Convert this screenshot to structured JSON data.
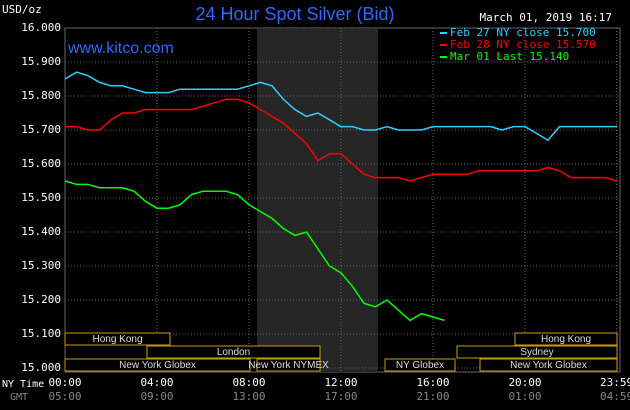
{
  "chart_data": {
    "type": "line",
    "title": "24 Hour Spot Silver (Bid)",
    "subtitle": "March 01, 2019 16:17",
    "watermark": "www.kitco.com",
    "y_label": "USD/oz",
    "x_label": "NY Time",
    "x2_label": "GMT",
    "x": [
      0,
      0.5,
      1,
      1.5,
      2,
      2.5,
      3,
      3.5,
      4,
      4.5,
      5,
      5.5,
      6,
      6.5,
      7,
      7.5,
      8,
      8.5,
      9,
      9.5,
      10,
      10.5,
      11,
      11.5,
      12,
      12.5,
      13,
      13.5,
      14,
      14.5,
      15,
      15.5,
      16,
      16.5,
      17,
      17.5,
      18,
      18.5,
      19,
      19.5,
      20,
      20.5,
      21,
      21.5,
      22,
      22.5,
      23,
      23.5,
      24
    ],
    "series": [
      {
        "name": "Feb 27 NY close 15.700",
        "color": "#33ccff",
        "values": [
          15.85,
          15.87,
          15.86,
          15.84,
          15.83,
          15.83,
          15.82,
          15.81,
          15.81,
          15.81,
          15.82,
          15.82,
          15.82,
          15.82,
          15.82,
          15.82,
          15.83,
          15.84,
          15.83,
          15.79,
          15.76,
          15.74,
          15.75,
          15.73,
          15.71,
          15.71,
          15.7,
          15.7,
          15.71,
          15.7,
          15.7,
          15.7,
          15.71,
          15.71,
          15.71,
          15.71,
          15.71,
          15.71,
          15.7,
          15.71,
          15.71,
          15.69,
          15.67,
          15.71,
          15.71,
          15.71,
          15.71,
          15.71,
          15.71
        ]
      },
      {
        "name": "Feb 28 NY close 15.570",
        "color": "#ff0000",
        "values": [
          15.71,
          15.71,
          15.7,
          15.7,
          15.73,
          15.75,
          15.75,
          15.76,
          15.76,
          15.76,
          15.76,
          15.76,
          15.77,
          15.78,
          15.79,
          15.79,
          15.78,
          15.76,
          15.74,
          15.72,
          15.69,
          15.66,
          15.61,
          15.63,
          15.63,
          15.6,
          15.57,
          15.56,
          15.56,
          15.56,
          15.55,
          15.56,
          15.57,
          15.57,
          15.57,
          15.57,
          15.58,
          15.58,
          15.58,
          15.58,
          15.58,
          15.58,
          15.59,
          15.58,
          15.56,
          15.56,
          15.56,
          15.56,
          15.55
        ]
      },
      {
        "name": "Mar 01 Last 15.140",
        "color": "#00ff00",
        "values": [
          15.55,
          15.54,
          15.54,
          15.53,
          15.53,
          15.53,
          15.52,
          15.49,
          15.47,
          15.47,
          15.48,
          15.51,
          15.52,
          15.52,
          15.52,
          15.51,
          15.48,
          15.46,
          15.44,
          15.41,
          15.39,
          15.4,
          15.35,
          15.3,
          15.28,
          15.24,
          15.19,
          15.18,
          15.2,
          15.17,
          15.14,
          15.16,
          15.15,
          15.14,
          null,
          null,
          null,
          null,
          null,
          null,
          null,
          null,
          null,
          null,
          null,
          null,
          null,
          null,
          null
        ]
      }
    ],
    "xlim": [
      0,
      24
    ],
    "xticks": [
      {
        "value": 0,
        "label": "00:00"
      },
      {
        "value": 4,
        "label": "04:00"
      },
      {
        "value": 8,
        "label": "08:00"
      },
      {
        "value": 12,
        "label": "12:00"
      },
      {
        "value": 16,
        "label": "16:00"
      },
      {
        "value": 20,
        "label": "20:00"
      },
      {
        "value": 23.983,
        "label": "23:59"
      }
    ],
    "x2ticks": [
      {
        "value": 0,
        "label": "05:00"
      },
      {
        "value": 4,
        "label": "09:00"
      },
      {
        "value": 8,
        "label": "13:00"
      },
      {
        "value": 12,
        "label": "17:00"
      },
      {
        "value": 16,
        "label": "21:00"
      },
      {
        "value": 20,
        "label": "01:00"
      },
      {
        "value": 23.983,
        "label": "04:59"
      }
    ],
    "ylim": [
      15,
      16
    ],
    "yticks": [
      {
        "value": 15,
        "label": "15.000"
      },
      {
        "value": 15.1,
        "label": "15.100"
      },
      {
        "value": 15.2,
        "label": "15.200"
      },
      {
        "value": 15.3,
        "label": "15.300"
      },
      {
        "value": 15.4,
        "label": "15.400"
      },
      {
        "value": 15.5,
        "label": "15.500"
      },
      {
        "value": 15.6,
        "label": "15.600"
      },
      {
        "value": 15.7,
        "label": "15.700"
      },
      {
        "value": 15.8,
        "label": "15.800"
      },
      {
        "value": 15.9,
        "label": "15.900"
      },
      {
        "value": 16,
        "label": "16.000"
      }
    ],
    "grid": true,
    "legend": "top-right",
    "sessions": [
      "Hong Kong",
      "London",
      "New York Globex",
      "New York NYMEX",
      "NY Globex",
      "Hong Kong",
      "Sydney",
      "New York Globex"
    ]
  }
}
